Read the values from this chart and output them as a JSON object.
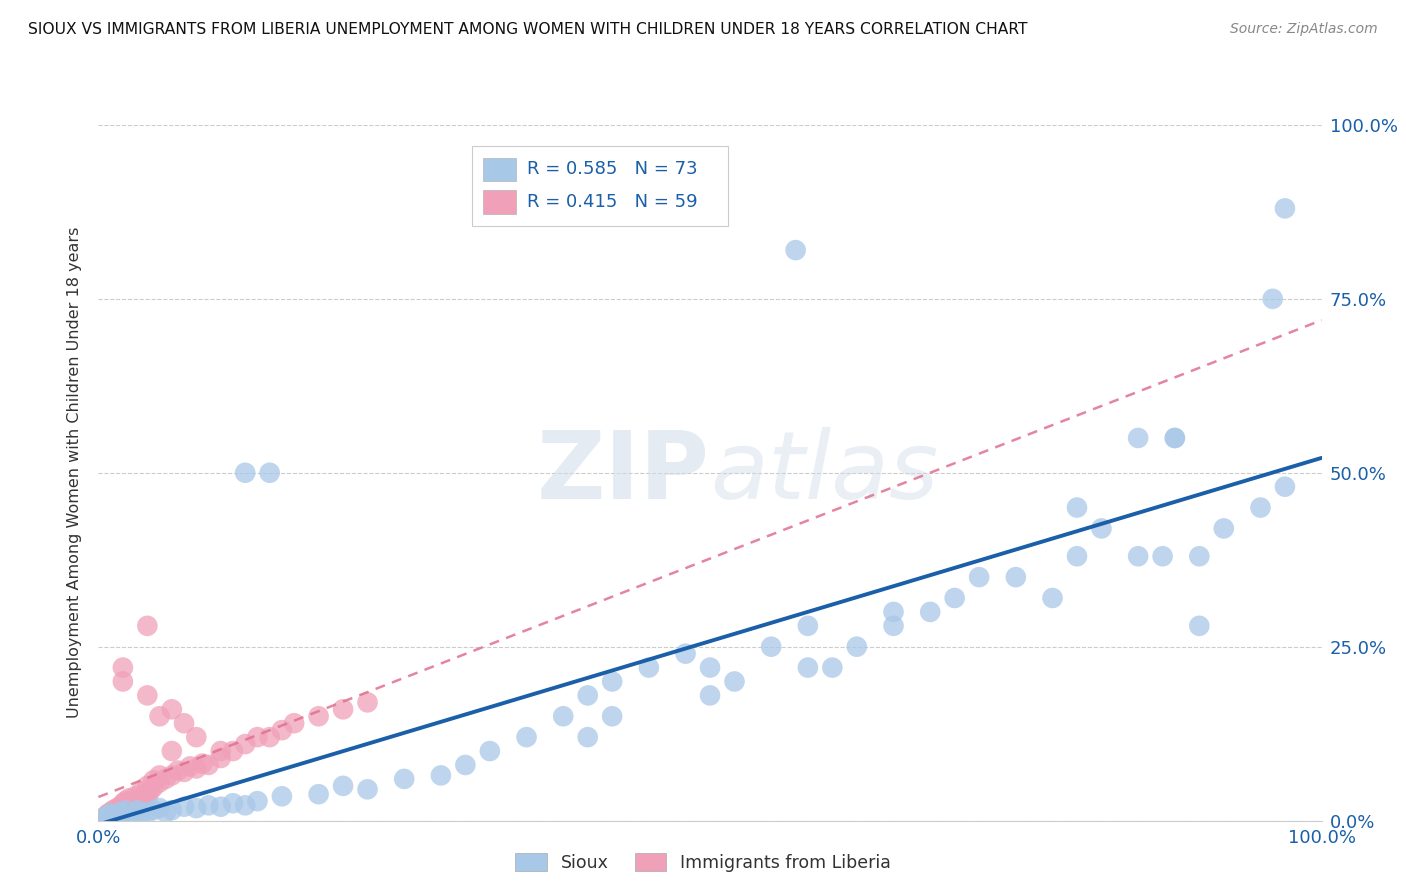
{
  "title": "SIOUX VS IMMIGRANTS FROM LIBERIA UNEMPLOYMENT AMONG WOMEN WITH CHILDREN UNDER 18 YEARS CORRELATION CHART",
  "source": "Source: ZipAtlas.com",
  "ylabel": "Unemployment Among Women with Children Under 18 years",
  "xlim": [
    0,
    1
  ],
  "ylim": [
    0,
    1
  ],
  "xtick_labels": [
    "0.0%",
    "100.0%"
  ],
  "ytick_labels": [
    "0.0%",
    "25.0%",
    "50.0%",
    "75.0%",
    "100.0%"
  ],
  "ytick_positions": [
    0,
    0.25,
    0.5,
    0.75,
    1.0
  ],
  "legend_labels": [
    "Sioux",
    "Immigrants from Liberia"
  ],
  "r_sioux": 0.585,
  "n_sioux": 73,
  "r_liberia": 0.415,
  "n_liberia": 59,
  "sioux_color": "#a8c8e8",
  "liberia_color": "#f0a0b8",
  "trend_sioux_color": "#1a5fa8",
  "trend_liberia_color": "#e07090",
  "background_color": "#ffffff",
  "watermark": "ZIPatlas",
  "sioux_x": [
    0.005,
    0.008,
    0.01,
    0.012,
    0.015,
    0.018,
    0.02,
    0.022,
    0.025,
    0.03,
    0.032,
    0.035,
    0.04,
    0.045,
    0.05,
    0.055,
    0.06,
    0.07,
    0.08,
    0.09,
    0.1,
    0.11,
    0.12,
    0.13,
    0.15,
    0.18,
    0.2,
    0.22,
    0.25,
    0.28,
    0.3,
    0.32,
    0.35,
    0.38,
    0.4,
    0.42,
    0.45,
    0.48,
    0.5,
    0.52,
    0.4,
    0.42,
    0.5,
    0.55,
    0.58,
    0.6,
    0.62,
    0.65,
    0.68,
    0.7,
    0.72,
    0.75,
    0.78,
    0.8,
    0.82,
    0.85,
    0.87,
    0.88,
    0.9,
    0.92,
    0.95,
    0.96,
    0.97,
    0.57,
    0.97,
    0.12,
    0.14,
    0.58,
    0.8,
    0.85,
    0.88,
    0.9,
    0.65
  ],
  "sioux_y": [
    0.005,
    0.008,
    0.01,
    0.005,
    0.008,
    0.012,
    0.01,
    0.015,
    0.008,
    0.012,
    0.015,
    0.01,
    0.012,
    0.015,
    0.018,
    0.012,
    0.015,
    0.02,
    0.018,
    0.022,
    0.02,
    0.025,
    0.022,
    0.028,
    0.035,
    0.038,
    0.05,
    0.045,
    0.06,
    0.065,
    0.08,
    0.1,
    0.12,
    0.15,
    0.18,
    0.2,
    0.22,
    0.24,
    0.18,
    0.2,
    0.12,
    0.15,
    0.22,
    0.25,
    0.28,
    0.22,
    0.25,
    0.28,
    0.3,
    0.32,
    0.35,
    0.35,
    0.32,
    0.38,
    0.42,
    0.38,
    0.38,
    0.55,
    0.38,
    0.42,
    0.45,
    0.75,
    0.48,
    0.82,
    0.88,
    0.5,
    0.5,
    0.22,
    0.45,
    0.55,
    0.55,
    0.28,
    0.3
  ],
  "liberia_x": [
    0.005,
    0.007,
    0.008,
    0.01,
    0.01,
    0.012,
    0.012,
    0.015,
    0.015,
    0.018,
    0.018,
    0.02,
    0.02,
    0.022,
    0.022,
    0.025,
    0.025,
    0.028,
    0.03,
    0.03,
    0.032,
    0.035,
    0.035,
    0.038,
    0.04,
    0.04,
    0.042,
    0.045,
    0.045,
    0.05,
    0.05,
    0.055,
    0.06,
    0.065,
    0.07,
    0.075,
    0.08,
    0.085,
    0.09,
    0.1,
    0.1,
    0.11,
    0.12,
    0.13,
    0.14,
    0.15,
    0.16,
    0.18,
    0.2,
    0.22,
    0.02,
    0.04,
    0.05,
    0.06,
    0.07,
    0.08,
    0.04,
    0.02,
    0.06
  ],
  "liberia_y": [
    0.005,
    0.008,
    0.01,
    0.005,
    0.012,
    0.008,
    0.015,
    0.01,
    0.018,
    0.012,
    0.02,
    0.015,
    0.025,
    0.018,
    0.028,
    0.022,
    0.032,
    0.025,
    0.02,
    0.035,
    0.028,
    0.032,
    0.042,
    0.038,
    0.035,
    0.05,
    0.042,
    0.048,
    0.058,
    0.055,
    0.065,
    0.06,
    0.065,
    0.072,
    0.07,
    0.078,
    0.075,
    0.082,
    0.08,
    0.09,
    0.1,
    0.1,
    0.11,
    0.12,
    0.12,
    0.13,
    0.14,
    0.15,
    0.16,
    0.17,
    0.2,
    0.18,
    0.15,
    0.16,
    0.14,
    0.12,
    0.28,
    0.22,
    0.1
  ]
}
